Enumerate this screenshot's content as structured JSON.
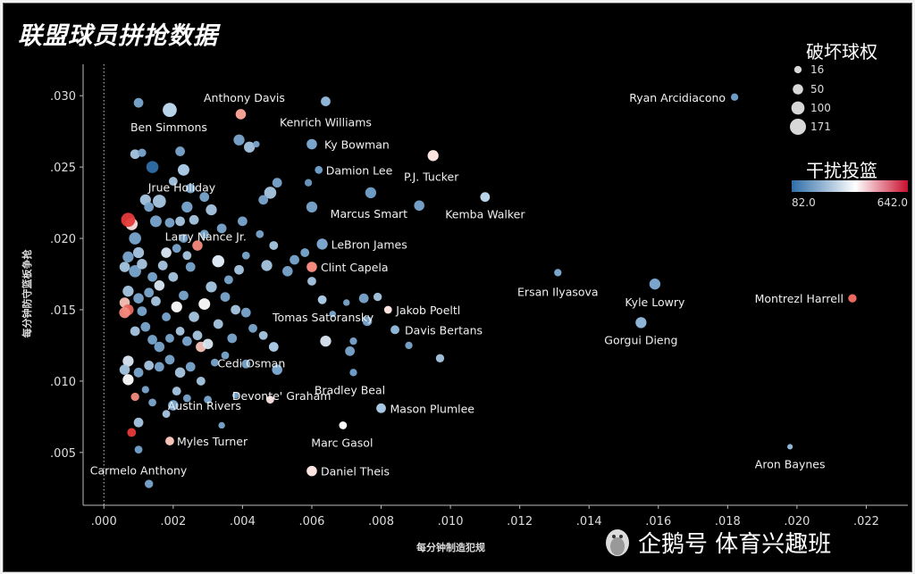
{
  "chart_data": {
    "type": "scatter",
    "title": "联盟球员拼抢数据",
    "xlabel": "每分钟制造犯规",
    "ylabel": "每分钟防守篮板争抢",
    "xlim": [
      -0.0006,
      0.0232
    ],
    "ylim": [
      0.0013,
      0.0322
    ],
    "x_ticks": [
      ".000",
      ".002",
      ".004",
      ".006",
      ".008",
      ".010",
      ".012",
      ".014",
      ".016",
      ".018",
      ".020",
      ".022"
    ],
    "y_ticks": [
      ".005",
      ".010",
      ".015",
      ".020",
      ".025",
      ".030"
    ],
    "x_tick_values": [
      0,
      0.002,
      0.004,
      0.006,
      0.008,
      0.01,
      0.012,
      0.014,
      0.016,
      0.018,
      0.02,
      0.022
    ],
    "y_tick_values": [
      0.005,
      0.01,
      0.015,
      0.02,
      0.025,
      0.03
    ],
    "zero_reference_line": "x=0 dotted",
    "size_legend": {
      "title": "破坏球权",
      "entries": [
        "16",
        "50",
        "100",
        "171"
      ],
      "values": [
        16,
        50,
        100,
        171
      ]
    },
    "color_legend": {
      "title": "干扰投篮",
      "min_label": "82.0",
      "max_label": "642.0",
      "min": 82,
      "max": 642,
      "colors": [
        "#2f6ea8",
        "#ffffff",
        "#c8102e"
      ]
    },
    "labeled_points": [
      {
        "name": "Anthony Davis",
        "x": 0.00395,
        "y": 0.0287,
        "size": 50,
        "color": "#f4a194"
      },
      {
        "name": "Kenrich Williams",
        "x": 0.0064,
        "y": 0.0296,
        "size": 40,
        "color": "#8fb5d6"
      },
      {
        "name": "Ben Simmons",
        "x": 0.0019,
        "y": 0.029,
        "size": 120,
        "color": "#b9d3e8"
      },
      {
        "name": "Ryan Arcidiacono",
        "x": 0.0182,
        "y": 0.0299,
        "size": 16,
        "color": "#6d9bc4"
      },
      {
        "name": "Ky Bowman",
        "x": 0.006,
        "y": 0.0266,
        "size": 50,
        "color": "#7aa6cd"
      },
      {
        "name": "Damion Lee",
        "x": 0.0062,
        "y": 0.0248,
        "size": 20,
        "color": "#6d9bc4"
      },
      {
        "name": "P.J. Tucker",
        "x": 0.0095,
        "y": 0.0258,
        "size": 60,
        "color": "#fbe3df"
      },
      {
        "name": "Jrue Holiday",
        "x": 0.0023,
        "y": 0.0248,
        "size": 70,
        "color": "#a8c7e3"
      },
      {
        "name": "Marcus Smart",
        "x": 0.0077,
        "y": 0.0232,
        "size": 60,
        "color": "#6d9bc4"
      },
      {
        "name": "Kemba Walker",
        "x": 0.011,
        "y": 0.0229,
        "size": 40,
        "color": "#b9d3e8"
      },
      {
        "name": "Larry Nance Jr.",
        "x": 0.0033,
        "y": 0.0184,
        "size": 80,
        "color": "#dbe8f3"
      },
      {
        "name": "LeBron James",
        "x": 0.0063,
        "y": 0.0196,
        "size": 60,
        "color": "#7aa6cd"
      },
      {
        "name": "Clint Capela",
        "x": 0.006,
        "y": 0.018,
        "size": 50,
        "color": "#f48a7e"
      },
      {
        "name": "Ersan Ilyasova",
        "x": 0.0131,
        "y": 0.0176,
        "size": 16,
        "color": "#7aa6cd"
      },
      {
        "name": "Tomas Satoransky",
        "x": 0.0063,
        "y": 0.0157,
        "size": 30,
        "color": "#a8c7e3"
      },
      {
        "name": "Kyle Lowry",
        "x": 0.0159,
        "y": 0.0168,
        "size": 60,
        "color": "#7aa6cd"
      },
      {
        "name": "Montrezl Harrell",
        "x": 0.0216,
        "y": 0.0158,
        "size": 25,
        "color": "#e8695f"
      },
      {
        "name": "Jakob Poeltl",
        "x": 0.0082,
        "y": 0.015,
        "size": 20,
        "color": "#fbe3df"
      },
      {
        "name": "Gorgui Dieng",
        "x": 0.0155,
        "y": 0.0141,
        "size": 60,
        "color": "#8fb5d6"
      },
      {
        "name": "Davis Bertans",
        "x": 0.0084,
        "y": 0.0136,
        "size": 30,
        "color": "#8fb5d6"
      },
      {
        "name": "Cedi Osman",
        "x": 0.0049,
        "y": 0.0124,
        "size": 40,
        "color": "#a8c7e3"
      },
      {
        "name": "Bradley Beal",
        "x": 0.0072,
        "y": 0.0106,
        "size": 16,
        "color": "#6d9bc4"
      },
      {
        "name": "Devonte' Graham",
        "x": 0.005,
        "y": 0.0108,
        "size": 50,
        "color": "#7aa6cd"
      },
      {
        "name": "Austin Rivers",
        "x": 0.002,
        "y": 0.0083,
        "size": 50,
        "color": "#7aa6cd"
      },
      {
        "name": "Mason Plumlee",
        "x": 0.008,
        "y": 0.0081,
        "size": 40,
        "color": "#a8c7e3"
      },
      {
        "name": "Myles Turner",
        "x": 0.0019,
        "y": 0.0058,
        "size": 30,
        "color": "#f8c3b9"
      },
      {
        "name": "Marc Gasol",
        "x": 0.0069,
        "y": 0.0069,
        "size": 20,
        "color": "#ffffff"
      },
      {
        "name": "Carmelo Anthony",
        "x": 0.001,
        "y": 0.0052,
        "size": 20,
        "color": "#6d9bc4"
      },
      {
        "name": "Aron Baynes",
        "x": 0.0198,
        "y": 0.0054,
        "size": 4,
        "color": "#8fb5d6"
      },
      {
        "name": "Daniel Theis",
        "x": 0.006,
        "y": 0.0037,
        "size": 50,
        "color": "#fbe3df"
      }
    ],
    "points": [
      [
        0.001,
        0.0295,
        40,
        "#7aa6cd"
      ],
      [
        0.0009,
        0.0259,
        40,
        "#a8c7e3"
      ],
      [
        0.0011,
        0.026,
        25,
        "#7aa6cd"
      ],
      [
        0.0014,
        0.025,
        80,
        "#2f6ea8"
      ],
      [
        0.0022,
        0.0261,
        40,
        "#7aa6cd"
      ],
      [
        0.0039,
        0.0269,
        60,
        "#7aa6cd"
      ],
      [
        0.0042,
        0.0264,
        60,
        "#a8c7e3"
      ],
      [
        0.0044,
        0.0266,
        10,
        "#7aa6cd"
      ],
      [
        0.005,
        0.0239,
        40,
        "#7aa6cd"
      ],
      [
        0.0048,
        0.0232,
        80,
        "#a8c7e3"
      ],
      [
        0.0046,
        0.0227,
        40,
        "#7aa6cd"
      ],
      [
        0.006,
        0.0222,
        60,
        "#7aa6cd"
      ],
      [
        0.0059,
        0.0239,
        16,
        "#6d9bc4"
      ],
      [
        0.0091,
        0.0223,
        50,
        "#7aa6cd"
      ],
      [
        0.0008,
        0.021,
        80,
        "#fbe3df"
      ],
      [
        0.0007,
        0.0213,
        120,
        "#e63a3a"
      ],
      [
        0.0012,
        0.0227,
        60,
        "#a8c7e3"
      ],
      [
        0.0013,
        0.0222,
        40,
        "#7aa6cd"
      ],
      [
        0.0015,
        0.0212,
        70,
        "#7aa6cd"
      ],
      [
        0.0016,
        0.0226,
        100,
        "#a8c7e3"
      ],
      [
        0.0019,
        0.0211,
        40,
        "#7aa6cd"
      ],
      [
        0.0022,
        0.0212,
        40,
        "#a8c7e3"
      ],
      [
        0.0024,
        0.0222,
        60,
        "#7aa6cd"
      ],
      [
        0.0026,
        0.0213,
        40,
        "#a8c7e3"
      ],
      [
        0.0029,
        0.0229,
        40,
        "#7aa6cd"
      ],
      [
        0.0023,
        0.02,
        30,
        "#7aa6cd"
      ],
      [
        0.0009,
        0.02,
        80,
        "#7aa6cd"
      ],
      [
        0.001,
        0.019,
        60,
        "#a8c7e3"
      ],
      [
        0.0007,
        0.0187,
        60,
        "#7aa6cd"
      ],
      [
        0.0006,
        0.018,
        50,
        "#a8c7e3"
      ],
      [
        0.0009,
        0.0177,
        80,
        "#7aa6cd"
      ],
      [
        0.0011,
        0.0182,
        50,
        "#a8c7e3"
      ],
      [
        0.0014,
        0.0173,
        40,
        "#7aa6cd"
      ],
      [
        0.0017,
        0.0181,
        40,
        "#a8c7e3"
      ],
      [
        0.0018,
        0.019,
        50,
        "#dbe8f3"
      ],
      [
        0.0021,
        0.0193,
        30,
        "#7aa6cd"
      ],
      [
        0.0024,
        0.0188,
        30,
        "#a8c7e3"
      ],
      [
        0.0027,
        0.0195,
        50,
        "#f48a7e"
      ],
      [
        0.0025,
        0.018,
        40,
        "#7aa6cd"
      ],
      [
        0.002,
        0.0173,
        40,
        "#a8c7e3"
      ],
      [
        0.0016,
        0.0167,
        50,
        "#dbe8f3"
      ],
      [
        0.0013,
        0.0162,
        40,
        "#7aa6cd"
      ],
      [
        0.001,
        0.0158,
        50,
        "#7aa6cd"
      ],
      [
        0.0007,
        0.0163,
        60,
        "#a8c7e3"
      ],
      [
        0.0006,
        0.0155,
        50,
        "#f8c3b9"
      ],
      [
        0.0007,
        0.015,
        60,
        "#e8695f"
      ],
      [
        0.0006,
        0.0148,
        60,
        "#f48a7e"
      ],
      [
        0.0011,
        0.0149,
        40,
        "#7aa6cd"
      ],
      [
        0.0015,
        0.0156,
        40,
        "#a8c7e3"
      ],
      [
        0.0018,
        0.0145,
        30,
        "#7aa6cd"
      ],
      [
        0.0021,
        0.0152,
        60,
        "#ffffff"
      ],
      [
        0.0023,
        0.016,
        40,
        "#7aa6cd"
      ],
      [
        0.0026,
        0.0145,
        50,
        "#a8c7e3"
      ],
      [
        0.0029,
        0.0154,
        70,
        "#ffffff"
      ],
      [
        0.0031,
        0.0166,
        60,
        "#a8c7e3"
      ],
      [
        0.0035,
        0.0159,
        40,
        "#7aa6cd"
      ],
      [
        0.0038,
        0.015,
        40,
        "#a8c7e3"
      ],
      [
        0.0041,
        0.0148,
        40,
        "#7aa6cd"
      ],
      [
        0.0036,
        0.0171,
        30,
        "#7aa6cd"
      ],
      [
        0.0039,
        0.0178,
        40,
        "#a8c7e3"
      ],
      [
        0.0047,
        0.0181,
        60,
        "#a8c7e3"
      ],
      [
        0.0053,
        0.0177,
        50,
        "#7aa6cd"
      ],
      [
        0.0055,
        0.0185,
        40,
        "#7aa6cd"
      ],
      [
        0.0058,
        0.019,
        30,
        "#7aa6cd"
      ],
      [
        0.0034,
        0.0207,
        40,
        "#7aa6cd"
      ],
      [
        0.004,
        0.0212,
        40,
        "#7aa6cd"
      ],
      [
        0.0045,
        0.0203,
        20,
        "#7aa6cd"
      ],
      [
        0.0049,
        0.0195,
        30,
        "#a8c7e3"
      ],
      [
        0.0029,
        0.0203,
        30,
        "#7aa6cd"
      ],
      [
        0.0031,
        0.022,
        60,
        "#a8c7e3"
      ],
      [
        0.0025,
        0.0235,
        40,
        "#7aa6cd"
      ],
      [
        0.002,
        0.024,
        30,
        "#a8c7e3"
      ],
      [
        0.0012,
        0.0138,
        40,
        "#7aa6cd"
      ],
      [
        0.0009,
        0.0135,
        40,
        "#a8c7e3"
      ],
      [
        0.0014,
        0.0129,
        40,
        "#7aa6cd"
      ],
      [
        0.0016,
        0.0124,
        50,
        "#7aa6cd"
      ],
      [
        0.0019,
        0.013,
        30,
        "#7aa6cd"
      ],
      [
        0.0022,
        0.0135,
        30,
        "#a8c7e3"
      ],
      [
        0.0024,
        0.0128,
        40,
        "#7aa6cd"
      ],
      [
        0.0027,
        0.0132,
        40,
        "#a8c7e3"
      ],
      [
        0.0028,
        0.0124,
        50,
        "#f8c3b9"
      ],
      [
        0.003,
        0.0126,
        50,
        "#dbe8f3"
      ],
      [
        0.0033,
        0.014,
        40,
        "#a8c7e3"
      ],
      [
        0.0037,
        0.013,
        40,
        "#7aa6cd"
      ],
      [
        0.0043,
        0.0137,
        30,
        "#7aa6cd"
      ],
      [
        0.0046,
        0.0132,
        30,
        "#a8c7e3"
      ],
      [
        0.0064,
        0.0128,
        60,
        "#dbe8f3"
      ],
      [
        0.0071,
        0.0121,
        40,
        "#7aa6cd"
      ],
      [
        0.0076,
        0.0142,
        40,
        "#7aa6cd"
      ],
      [
        0.0075,
        0.0158,
        40,
        "#7aa6cd"
      ],
      [
        0.0079,
        0.0159,
        25,
        "#a8c7e3"
      ],
      [
        0.007,
        0.0155,
        10,
        "#7aa6cd"
      ],
      [
        0.0066,
        0.0147,
        10,
        "#7aa6cd"
      ],
      [
        0.0072,
        0.0128,
        16,
        "#7aa6cd"
      ],
      [
        0.0097,
        0.0116,
        25,
        "#a8c7e3"
      ],
      [
        0.0088,
        0.0125,
        16,
        "#7aa6cd"
      ],
      [
        0.0007,
        0.0114,
        60,
        "#dbe8f3"
      ],
      [
        0.0006,
        0.0108,
        50,
        "#a8c7e3"
      ],
      [
        0.0007,
        0.0101,
        60,
        "#ffffff"
      ],
      [
        0.001,
        0.0106,
        40,
        "#7aa6cd"
      ],
      [
        0.0013,
        0.0111,
        40,
        "#a8c7e3"
      ],
      [
        0.0016,
        0.011,
        40,
        "#7aa6cd"
      ],
      [
        0.0019,
        0.0115,
        40,
        "#7aa6cd"
      ],
      [
        0.0022,
        0.0106,
        50,
        "#a8c7e3"
      ],
      [
        0.0025,
        0.011,
        40,
        "#7aa6cd"
      ],
      [
        0.0028,
        0.01,
        30,
        "#a8c7e3"
      ],
      [
        0.0032,
        0.0113,
        20,
        "#7aa6cd"
      ],
      [
        0.0035,
        0.0118,
        20,
        "#7aa6cd"
      ],
      [
        0.0041,
        0.0112,
        30,
        "#7aa6cd"
      ],
      [
        0.0021,
        0.0093,
        30,
        "#a8c7e3"
      ],
      [
        0.0024,
        0.0088,
        20,
        "#7aa6cd"
      ],
      [
        0.0014,
        0.0085,
        20,
        "#7aa6cd"
      ],
      [
        0.0009,
        0.0089,
        25,
        "#f48a7e"
      ],
      [
        0.0012,
        0.0094,
        16,
        "#7aa6cd"
      ],
      [
        0.0018,
        0.0077,
        20,
        "#a8c7e3"
      ],
      [
        0.003,
        0.0087,
        20,
        "#7aa6cd"
      ],
      [
        0.0038,
        0.009,
        10,
        "#7aa6cd"
      ],
      [
        0.0048,
        0.0087,
        20,
        "#fbe3df"
      ],
      [
        0.001,
        0.0071,
        40,
        "#a8c7e3"
      ],
      [
        0.0008,
        0.0064,
        30,
        "#e63a3a"
      ],
      [
        0.0034,
        0.0069,
        10,
        "#7aa6cd"
      ],
      [
        0.0013,
        0.0028,
        25,
        "#7aa6cd"
      ],
      [
        0.0041,
        0.0188,
        20,
        "#7aa6cd"
      ],
      [
        0.006,
        0.017,
        30,
        "#a8c7e3"
      ]
    ]
  },
  "watermark": {
    "icon": "penguin-icon",
    "text": "企鹅号 体育兴趣班"
  }
}
